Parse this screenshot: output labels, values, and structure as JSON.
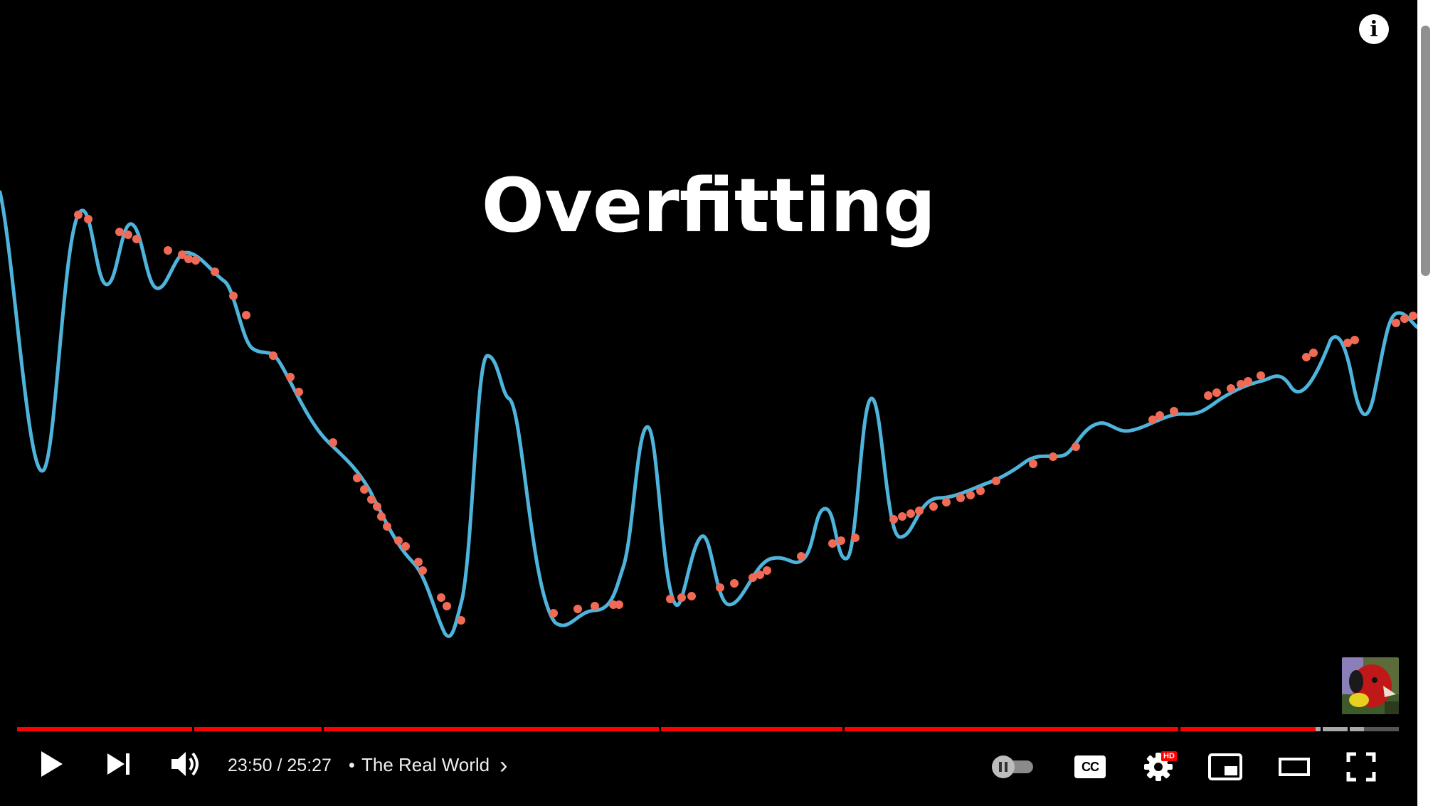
{
  "video": {
    "title": "Overfitting",
    "info_icon": "info-icon",
    "info_glyph": "i",
    "curve_color": "#4fb4dc",
    "point_color": "#f06a56"
  },
  "player": {
    "progress_fraction": 0.94,
    "buffered_fraction": 0.975,
    "played_color": "#ff0000",
    "chapter_count": 8
  },
  "controls": {
    "play_icon": "play-icon",
    "next_icon": "next-icon",
    "volume_icon": "volume-icon",
    "time_display": "23:50 / 25:27",
    "separator": "•",
    "chapter_title": "The Real World",
    "chapter_chevron": "›",
    "autoplay_icon": "autoplay-toggle-icon",
    "captions_label": "CC",
    "settings_icon": "gear-icon",
    "settings_badge": "HD",
    "miniplayer_icon": "miniplayer-icon",
    "theater_icon": "theater-mode-icon",
    "fullscreen_icon": "fullscreen-icon"
  }
}
